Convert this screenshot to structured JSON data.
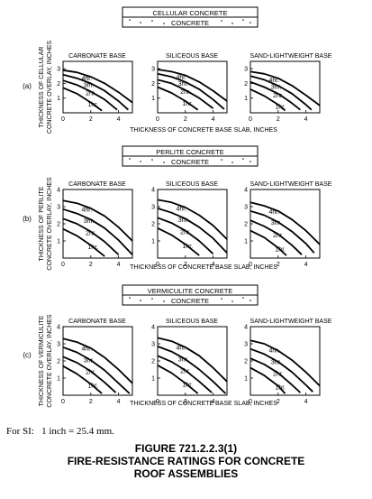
{
  "si_note": "For SI:   1 inch = 25.4 mm.",
  "caption": {
    "number": "FIGURE 721.2.2.3(1)",
    "line1": "FIRE-RESISTANCE RATINGS FOR CONCRETE",
    "line2": "ROOF ASSEMBLIES"
  },
  "chart_data": [
    {
      "type": "line",
      "panel_label": "(a)",
      "legend_top": "CELLULAR CONCRETE",
      "legend_bottom": "CONCRETE",
      "ylabel_line1": "THICKNESS OF CELLULAR",
      "ylabel_line2": "CONCRETE OVERLAY, INCHES",
      "xlabel": "THICKNESS OF CONCRETE BASE SLAB, INCHES",
      "xlim": [
        0,
        5
      ],
      "ylim": [
        0,
        3.5
      ],
      "xticks": [
        0,
        2,
        4
      ],
      "yticks": [
        1,
        2,
        3
      ],
      "subplots": [
        {
          "title": "CARBONATE BASE",
          "series": [
            {
              "name": "4hr.",
              "x": [
                0,
                1,
                2,
                3,
                4,
                5
              ],
              "y": [
                2.9,
                2.75,
                2.45,
                2.0,
                1.4,
                0.7
              ]
            },
            {
              "name": "3hr.",
              "x": [
                0,
                1,
                2,
                3,
                4,
                4.7
              ],
              "y": [
                2.6,
                2.35,
                2.0,
                1.5,
                0.8,
                0.2
              ]
            },
            {
              "name": "2hr.",
              "x": [
                0,
                1,
                2,
                3,
                3.9
              ],
              "y": [
                2.2,
                1.9,
                1.45,
                0.9,
                0.2
              ]
            },
            {
              "name": "1hr.",
              "x": [
                0,
                1,
                2,
                2.8
              ],
              "y": [
                1.7,
                1.3,
                0.7,
                0.15
              ]
            }
          ]
        },
        {
          "title": "SILICEOUS BASE",
          "series": [
            {
              "name": "4hr.",
              "x": [
                0,
                1,
                2,
                3,
                4,
                5
              ],
              "y": [
                2.95,
                2.8,
                2.55,
                2.1,
                1.5,
                0.8
              ]
            },
            {
              "name": "3hr.",
              "x": [
                0,
                1,
                2,
                3,
                4,
                4.8
              ],
              "y": [
                2.65,
                2.45,
                2.1,
                1.6,
                0.9,
                0.25
              ]
            },
            {
              "name": "2hr.",
              "x": [
                0,
                1,
                2,
                3,
                4
              ],
              "y": [
                2.25,
                2.0,
                1.55,
                1.0,
                0.3
              ]
            },
            {
              "name": "1hr.",
              "x": [
                0,
                1,
                2,
                2.9
              ],
              "y": [
                1.75,
                1.35,
                0.8,
                0.2
              ]
            }
          ]
        },
        {
          "title": "SAND-LIGHTWEIGHT BASE",
          "series": [
            {
              "name": "4hr.",
              "x": [
                0,
                1,
                2,
                3,
                4,
                5
              ],
              "y": [
                2.8,
                2.65,
                2.35,
                1.85,
                1.2,
                0.5
              ]
            },
            {
              "name": "3hr.",
              "x": [
                0,
                1,
                2,
                3,
                4,
                4.4
              ],
              "y": [
                2.5,
                2.25,
                1.85,
                1.3,
                0.55,
                0.2
              ]
            },
            {
              "name": "2hr.",
              "x": [
                0,
                1,
                2,
                3,
                3.6
              ],
              "y": [
                2.1,
                1.75,
                1.3,
                0.65,
                0.2
              ]
            },
            {
              "name": "1hr.",
              "x": [
                0,
                1,
                2,
                2.5
              ],
              "y": [
                1.6,
                1.15,
                0.55,
                0.15
              ]
            }
          ]
        }
      ]
    },
    {
      "type": "line",
      "panel_label": "(b)",
      "legend_top": "PERLITE CONCRETE",
      "legend_bottom": "CONCRETE",
      "ylabel_line1": "THICKNESS OF PERLITE",
      "ylabel_line2": "CONCRETE OVERLAY, INCHES",
      "xlabel": "THICKNESS OF CONCRETE BASE SLAB, INCHES",
      "xlim": [
        0,
        5
      ],
      "ylim": [
        0,
        4
      ],
      "xticks": [
        0,
        2,
        4
      ],
      "yticks": [
        1,
        2,
        3,
        4
      ],
      "subplots": [
        {
          "title": "CARBONATE BASE",
          "series": [
            {
              "name": "4hr.",
              "x": [
                0,
                1,
                2,
                3,
                4,
                5
              ],
              "y": [
                3.35,
                3.2,
                2.9,
                2.45,
                1.8,
                1.0
              ]
            },
            {
              "name": "3hr.",
              "x": [
                0,
                1,
                2,
                3,
                4,
                5
              ],
              "y": [
                2.85,
                2.6,
                2.25,
                1.75,
                1.05,
                0.2
              ]
            },
            {
              "name": "2hr.",
              "x": [
                0,
                1,
                2,
                3,
                4
              ],
              "y": [
                2.3,
                2.0,
                1.55,
                0.95,
                0.2
              ]
            },
            {
              "name": "1hr.",
              "x": [
                0,
                1,
                2,
                3
              ],
              "y": [
                1.7,
                1.3,
                0.75,
                0.1
              ]
            }
          ]
        },
        {
          "title": "SILICEOUS BASE",
          "series": [
            {
              "name": "4hr.",
              "x": [
                0,
                1,
                2,
                3,
                4,
                5
              ],
              "y": [
                3.4,
                3.25,
                2.95,
                2.5,
                1.9,
                1.1
              ]
            },
            {
              "name": "3hr.",
              "x": [
                0,
                1,
                2,
                3,
                4,
                5
              ],
              "y": [
                2.9,
                2.65,
                2.3,
                1.8,
                1.15,
                0.3
              ]
            },
            {
              "name": "2hr.",
              "x": [
                0,
                1,
                2,
                3,
                4
              ],
              "y": [
                2.35,
                2.05,
                1.6,
                1.0,
                0.25
              ]
            },
            {
              "name": "1hr.",
              "x": [
                0,
                1,
                2,
                3
              ],
              "y": [
                1.75,
                1.35,
                0.8,
                0.15
              ]
            }
          ]
        },
        {
          "title": "SAND-LIGHTWEIGHT BASE",
          "series": [
            {
              "name": "4hr.",
              "x": [
                0,
                1,
                2,
                3,
                4,
                5
              ],
              "y": [
                3.25,
                3.05,
                2.75,
                2.25,
                1.6,
                0.8
              ]
            },
            {
              "name": "3hr.",
              "x": [
                0,
                1,
                2,
                3,
                4,
                4.6
              ],
              "y": [
                2.75,
                2.5,
                2.1,
                1.55,
                0.85,
                0.3
              ]
            },
            {
              "name": "2hr.",
              "x": [
                0,
                1,
                2,
                3,
                3.7
              ],
              "y": [
                2.2,
                1.85,
                1.4,
                0.75,
                0.2
              ]
            },
            {
              "name": "1hr.",
              "x": [
                0,
                1,
                2,
                2.6
              ],
              "y": [
                1.6,
                1.2,
                0.6,
                0.15
              ]
            }
          ]
        }
      ]
    },
    {
      "type": "line",
      "panel_label": "(c)",
      "legend_top": "VERMICULITE CONCRETE",
      "legend_bottom": "CONCRETE",
      "ylabel_line1": "THICKNESS OF VERMICULITE",
      "ylabel_line2": "CONCRETE OVERLAY, INCHES",
      "xlabel": "THICKNESS OF CONCRETE BASE SLAB, INCHES",
      "xlim": [
        0,
        5
      ],
      "ylim": [
        0,
        4
      ],
      "xticks": [
        0,
        2,
        4
      ],
      "yticks": [
        1,
        2,
        3,
        4
      ],
      "subplots": [
        {
          "title": "CARBONATE BASE",
          "series": [
            {
              "name": "4hr.",
              "x": [
                0,
                1,
                2,
                3,
                4,
                5
              ],
              "y": [
                3.3,
                3.1,
                2.75,
                2.2,
                1.5,
                0.7
              ]
            },
            {
              "name": "3hr.",
              "x": [
                0,
                1,
                2,
                3,
                4,
                4.8
              ],
              "y": [
                2.8,
                2.5,
                2.05,
                1.45,
                0.7,
                0.1
              ]
            },
            {
              "name": "2hr.",
              "x": [
                0,
                1,
                2,
                3,
                3.8
              ],
              "y": [
                2.25,
                1.9,
                1.4,
                0.75,
                0.15
              ]
            },
            {
              "name": "1hr.",
              "x": [
                0,
                1,
                2,
                2.8
              ],
              "y": [
                1.7,
                1.25,
                0.65,
                0.1
              ]
            }
          ]
        },
        {
          "title": "SILICEOUS BASE",
          "series": [
            {
              "name": "4hr.",
              "x": [
                0,
                1,
                2,
                3,
                4,
                5
              ],
              "y": [
                3.35,
                3.15,
                2.8,
                2.3,
                1.6,
                0.8
              ]
            },
            {
              "name": "3hr.",
              "x": [
                0,
                1,
                2,
                3,
                4,
                4.9
              ],
              "y": [
                2.85,
                2.55,
                2.1,
                1.5,
                0.8,
                0.1
              ]
            },
            {
              "name": "2hr.",
              "x": [
                0,
                1,
                2,
                3,
                3.9
              ],
              "y": [
                2.3,
                1.95,
                1.45,
                0.8,
                0.15
              ]
            },
            {
              "name": "1hr.",
              "x": [
                0,
                1,
                2,
                2.9
              ],
              "y": [
                1.75,
                1.3,
                0.7,
                0.1
              ]
            }
          ]
        },
        {
          "title": "SAND-LIGHTWEIGHT BASE",
          "series": [
            {
              "name": "4hr.",
              "x": [
                0,
                1,
                2,
                3,
                4,
                5
              ],
              "y": [
                3.2,
                3.0,
                2.6,
                2.05,
                1.35,
                0.55
              ]
            },
            {
              "name": "3hr.",
              "x": [
                0,
                1,
                2,
                3,
                4,
                4.5
              ],
              "y": [
                2.7,
                2.4,
                1.95,
                1.35,
                0.6,
                0.2
              ]
            },
            {
              "name": "2hr.",
              "x": [
                0,
                1,
                2,
                3,
                3.6
              ],
              "y": [
                2.15,
                1.8,
                1.3,
                0.6,
                0.15
              ]
            },
            {
              "name": "1hr.",
              "x": [
                0,
                1,
                2,
                2.5
              ],
              "y": [
                1.6,
                1.15,
                0.55,
                0.1
              ]
            }
          ]
        }
      ]
    }
  ]
}
